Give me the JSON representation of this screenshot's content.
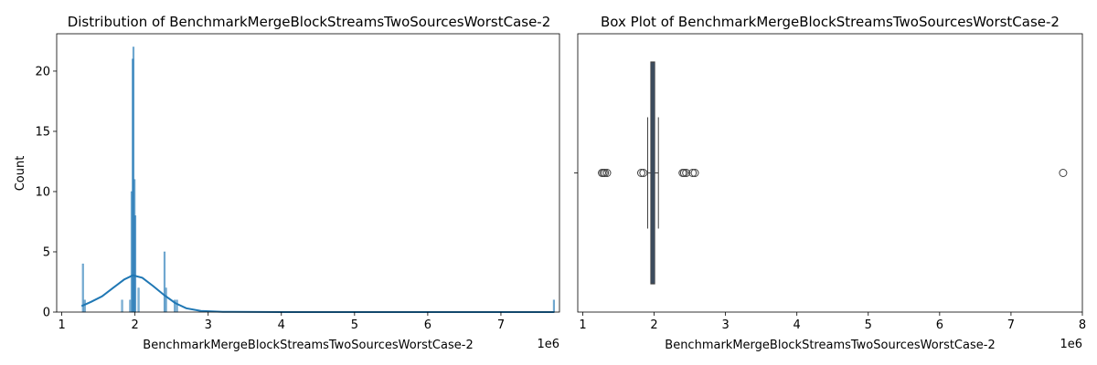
{
  "chart_data": [
    {
      "type": "histogram",
      "title": "Distribution of BenchmarkMergeBlockStreamsTwoSourcesWorstCase-2",
      "xlabel": "BenchmarkMergeBlockStreamsTwoSourcesWorstCase-2",
      "ylabel": "Count",
      "x_offset_label": "1e6",
      "xlim": [
        0.93,
        7.8
      ],
      "ylim": [
        0,
        23.1
      ],
      "xticks": [
        1,
        2,
        3,
        4,
        5,
        6,
        7
      ],
      "yticks": [
        0,
        5,
        10,
        15,
        20
      ],
      "bar_color": "#1f77b4",
      "bins": [
        {
          "x": 1.285,
          "count": 4
        },
        {
          "x": 1.31,
          "count": 1
        },
        {
          "x": 1.82,
          "count": 1
        },
        {
          "x": 1.93,
          "count": 1
        },
        {
          "x": 1.95,
          "count": 10
        },
        {
          "x": 1.965,
          "count": 21
        },
        {
          "x": 1.975,
          "count": 22
        },
        {
          "x": 1.99,
          "count": 11
        },
        {
          "x": 2.0,
          "count": 8
        },
        {
          "x": 2.045,
          "count": 2
        },
        {
          "x": 2.4,
          "count": 5
        },
        {
          "x": 2.42,
          "count": 2
        },
        {
          "x": 2.54,
          "count": 1
        },
        {
          "x": 2.57,
          "count": 1
        },
        {
          "x": 7.72,
          "count": 1
        }
      ],
      "kde": [
        [
          1.27,
          0.5
        ],
        [
          1.4,
          0.85
        ],
        [
          1.55,
          1.3
        ],
        [
          1.7,
          2.0
        ],
        [
          1.85,
          2.7
        ],
        [
          1.97,
          3.05
        ],
        [
          2.1,
          2.85
        ],
        [
          2.25,
          2.15
        ],
        [
          2.4,
          1.4
        ],
        [
          2.55,
          0.75
        ],
        [
          2.7,
          0.32
        ],
        [
          2.9,
          0.1
        ],
        [
          3.2,
          0.02
        ],
        [
          4.0,
          0.0
        ],
        [
          7.73,
          0.0
        ]
      ]
    },
    {
      "type": "box",
      "title": "Box Plot of BenchmarkMergeBlockStreamsTwoSourcesWorstCase-2",
      "xlabel": "BenchmarkMergeBlockStreamsTwoSourcesWorstCase-2",
      "x_offset_label": "1e6",
      "xlim": [
        0.93,
        8.0
      ],
      "xticks": [
        1,
        2,
        3,
        4,
        5,
        6,
        7,
        8
      ],
      "box_color": "#3a5f8a",
      "whisker_low": 1.91,
      "q1": 1.955,
      "median": 1.98,
      "q3": 2.005,
      "whisker_high": 2.06,
      "outliers": [
        1.27,
        1.29,
        1.31,
        1.34,
        1.82,
        1.85,
        2.4,
        2.42,
        2.45,
        2.54,
        2.57,
        7.73
      ]
    }
  ]
}
